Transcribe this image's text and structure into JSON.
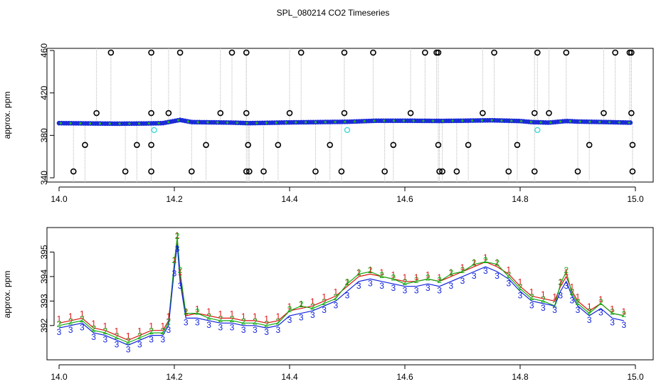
{
  "title": "SPL_080214  CO2 Timeseries",
  "colors": {
    "axis": "#000000",
    "drop_line": "#b8b8b8",
    "open_circle": "#000000",
    "point_blue": "#1c2bd8",
    "point_green": "#22b022",
    "point_cyan": "#33d6d6",
    "series_red": "#dd1111",
    "series_green": "#11aa11",
    "series_blue": "#1122dd"
  },
  "chart_data": [
    {
      "type": "scatter",
      "name": "top-panel",
      "xlabel": "",
      "ylabel": "approx. ppm",
      "xlim": [
        14.0,
        15.0
      ],
      "ylim": [
        336,
        462
      ],
      "xticks": [
        14.0,
        14.2,
        14.4,
        14.6,
        14.8,
        15.0
      ],
      "xtick_labels": [
        "14.0",
        "14.2",
        "14.4",
        "14.6",
        "14.8",
        "15.0"
      ],
      "yticks": [
        340,
        380,
        420,
        460
      ],
      "ytick_labels": [
        "340",
        "380",
        "420",
        "460"
      ],
      "baseline_trend": {
        "x": [
          14.0,
          14.1,
          14.15,
          14.18,
          14.2,
          14.21,
          14.23,
          14.3,
          14.33,
          14.4,
          14.45,
          14.5,
          14.55,
          14.6,
          14.66,
          14.7,
          14.75,
          14.8,
          14.82,
          14.85,
          14.88,
          14.9,
          14.95,
          14.99
        ],
        "y": [
          391.5,
          391.0,
          391.2,
          391.5,
          393.5,
          394.5,
          392.5,
          392.0,
          391.5,
          392.2,
          392.5,
          392.8,
          393.8,
          393.8,
          393.6,
          393.8,
          394.2,
          393.5,
          392.5,
          392.0,
          393.5,
          393.0,
          392.5,
          392.0
        ]
      },
      "outliers_high": [
        14.09,
        14.16,
        14.21,
        14.3,
        14.325,
        14.42,
        14.495,
        14.545,
        14.635,
        14.655,
        14.658,
        14.755,
        14.83,
        14.88,
        14.965,
        14.99,
        14.993
      ],
      "outliers_low": [
        14.025,
        14.115,
        14.16,
        14.23,
        14.325,
        14.33,
        14.355,
        14.445,
        14.49,
        14.565,
        14.66,
        14.665,
        14.69,
        14.78,
        14.825,
        14.9,
        14.995
      ],
      "outliers_mid_high": [
        14.065,
        14.16,
        14.19,
        14.28,
        14.325,
        14.4,
        14.495,
        14.61,
        14.735,
        14.825,
        14.85,
        14.945,
        14.993
      ],
      "outliers_mid_low": [
        14.045,
        14.135,
        14.16,
        14.255,
        14.328,
        14.38,
        14.47,
        14.58,
        14.658,
        14.71,
        14.795,
        14.92,
        14.995
      ],
      "outliers_near": [
        14.165,
        14.5,
        14.83
      ],
      "values": {
        "high": 458,
        "mid_high": 401,
        "mid_low": 371,
        "low": 346,
        "near": 385
      }
    },
    {
      "type": "line",
      "name": "bottom-panel",
      "xlabel": "",
      "ylabel": "approx. ppm",
      "xlim": [
        14.0,
        15.0
      ],
      "ylim": [
        390.6,
        396.0
      ],
      "xticks": [
        14.0,
        14.2,
        14.4,
        14.6,
        14.8,
        15.0
      ],
      "xtick_labels": [
        "14.0",
        "14.2",
        "14.4",
        "14.6",
        "14.8",
        "15.0"
      ],
      "yticks": [
        392,
        393,
        394,
        395
      ],
      "ytick_labels": [
        "392",
        "393",
        "394",
        "395"
      ],
      "x": [
        14.0,
        14.02,
        14.04,
        14.06,
        14.08,
        14.1,
        14.12,
        14.14,
        14.16,
        14.18,
        14.19,
        14.2,
        14.205,
        14.21,
        14.22,
        14.24,
        14.26,
        14.28,
        14.3,
        14.32,
        14.34,
        14.36,
        14.38,
        14.4,
        14.42,
        14.44,
        14.46,
        14.48,
        14.5,
        14.52,
        14.54,
        14.56,
        14.58,
        14.6,
        14.62,
        14.64,
        14.66,
        14.68,
        14.7,
        14.72,
        14.74,
        14.76,
        14.78,
        14.8,
        14.82,
        14.84,
        14.86,
        14.87,
        14.88,
        14.89,
        14.9,
        14.92,
        14.94,
        14.96,
        14.98
      ],
      "series": [
        {
          "name": "1",
          "marker": "1",
          "values": [
            392.1,
            392.2,
            392.3,
            391.9,
            391.8,
            391.6,
            391.4,
            391.6,
            391.8,
            391.8,
            392.2,
            394.5,
            395.5,
            394.0,
            392.4,
            392.5,
            392.4,
            392.3,
            392.3,
            392.2,
            392.2,
            392.1,
            392.2,
            392.6,
            392.7,
            392.8,
            393.0,
            393.2,
            393.6,
            394.0,
            394.1,
            394.0,
            393.9,
            393.8,
            393.8,
            393.9,
            393.8,
            394.0,
            394.2,
            394.4,
            394.6,
            394.4,
            394.1,
            393.6,
            393.2,
            393.1,
            393.0,
            393.6,
            394.0,
            393.4,
            393.0,
            392.6,
            392.9,
            392.5,
            392.4
          ]
        },
        {
          "name": "2",
          "marker": "2",
          "values": [
            392.0,
            392.1,
            392.2,
            391.8,
            391.7,
            391.5,
            391.3,
            391.5,
            391.7,
            391.7,
            392.1,
            394.6,
            395.6,
            394.2,
            392.5,
            392.5,
            392.3,
            392.2,
            392.2,
            392.1,
            392.1,
            392.0,
            392.1,
            392.6,
            392.8,
            392.7,
            392.9,
            393.1,
            393.7,
            394.1,
            394.2,
            394.0,
            393.9,
            393.7,
            393.8,
            393.9,
            393.8,
            394.1,
            394.2,
            394.5,
            394.6,
            394.5,
            394.0,
            393.5,
            393.1,
            393.0,
            392.8,
            393.7,
            394.2,
            393.3,
            392.9,
            392.5,
            392.9,
            392.5,
            392.4
          ]
        },
        {
          "name": "3",
          "marker": "3",
          "values": [
            391.9,
            392.0,
            392.1,
            391.7,
            391.6,
            391.4,
            391.2,
            391.4,
            391.6,
            391.6,
            392.0,
            394.3,
            395.3,
            393.8,
            392.3,
            392.3,
            392.2,
            392.1,
            392.1,
            392.0,
            392.0,
            391.9,
            392.0,
            392.4,
            392.5,
            392.6,
            392.8,
            393.0,
            393.4,
            393.8,
            393.9,
            393.8,
            393.7,
            393.6,
            393.6,
            393.7,
            393.6,
            393.8,
            394.0,
            394.2,
            394.4,
            394.2,
            393.9,
            393.4,
            393.0,
            392.9,
            392.8,
            393.4,
            393.8,
            393.2,
            392.8,
            392.4,
            392.7,
            392.3,
            392.2
          ]
        }
      ]
    }
  ]
}
